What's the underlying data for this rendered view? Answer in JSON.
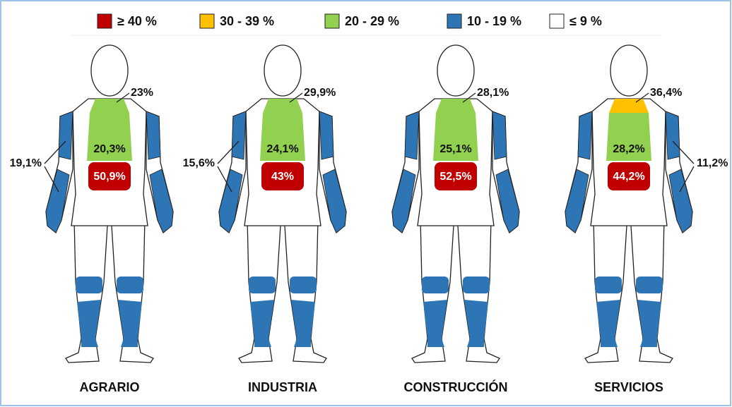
{
  "legend": [
    {
      "label": "≥ 40 %",
      "color": "#c00000"
    },
    {
      "label": "30 - 39 %",
      "color": "#ffc000"
    },
    {
      "label": "20 - 29 %",
      "color": "#92d050"
    },
    {
      "label": "10 - 19 %",
      "color": "#2e75b6"
    },
    {
      "label": "≤ 9 %",
      "color": "#ffffff"
    }
  ],
  "figures": [
    {
      "name": "AGRARIO",
      "neck": "23%",
      "neck_color": "#92d050",
      "upper_back": "20,3%",
      "lumbar": "50,9%",
      "arm": "19,1%"
    },
    {
      "name": "INDUSTRIA",
      "neck": "29,9%",
      "neck_color": "#92d050",
      "upper_back": "24,1%",
      "lumbar": "43%",
      "arm": "15,6%"
    },
    {
      "name": "CONSTRUCCIÓN",
      "neck": "28,1%",
      "neck_color": "#92d050",
      "upper_back": "25,1%",
      "lumbar": "52,5%",
      "arm": null
    },
    {
      "name": "SERVICIOS",
      "neck": "36,4%",
      "neck_color": "#ffc000",
      "upper_back": "28,2%",
      "lumbar": "44,2%",
      "arm": "11,2%"
    }
  ]
}
